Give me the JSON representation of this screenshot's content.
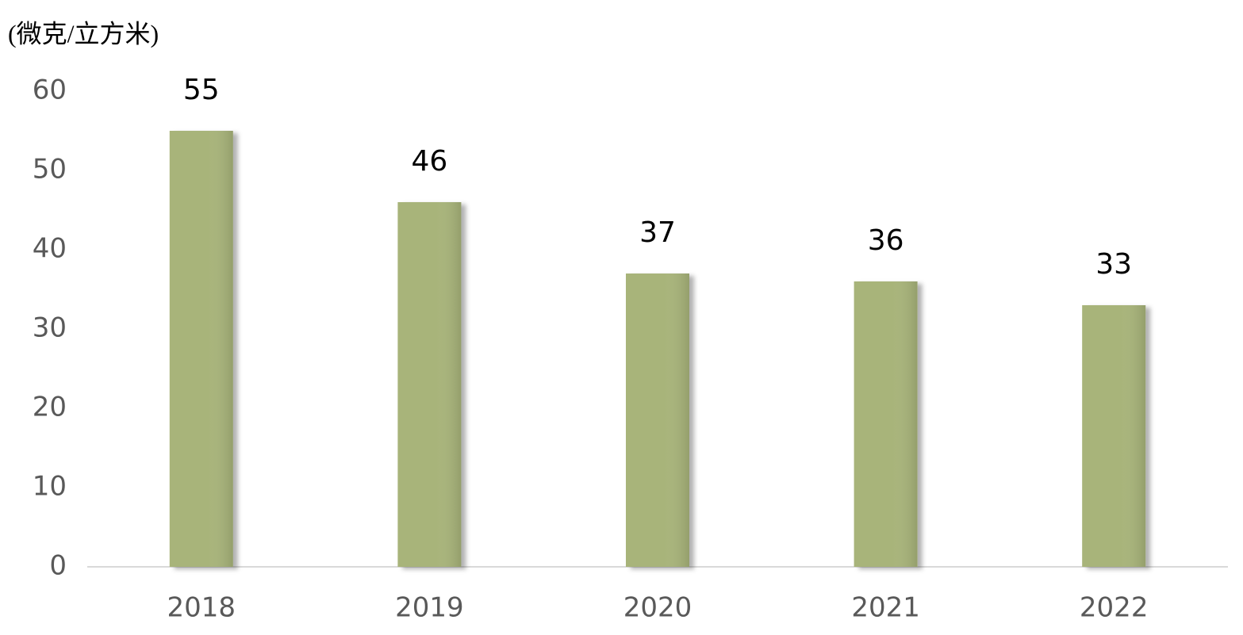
{
  "chart_data": {
    "type": "bar",
    "y_label": "(微克/立方米)",
    "categories": [
      "2018",
      "2019",
      "2020",
      "2021",
      "2022"
    ],
    "values": [
      55,
      46,
      37,
      36,
      33
    ],
    "color": "#a8b47a",
    "ylim": [
      0,
      60
    ],
    "yticks": [
      0,
      10,
      20,
      30,
      40,
      50,
      60
    ],
    "grid": false
  }
}
